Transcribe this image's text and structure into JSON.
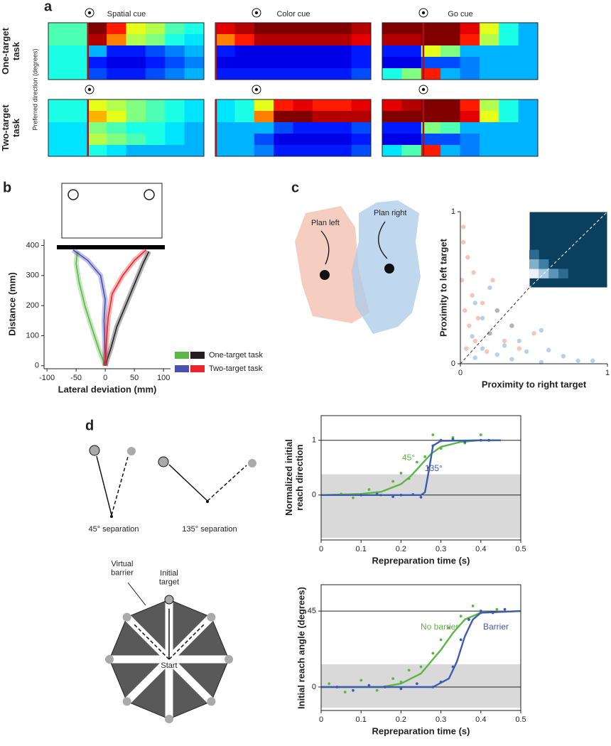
{
  "panels": [
    "a",
    "b",
    "c",
    "d"
  ],
  "diagrams": {
    "plan_left": "Plan left",
    "plan_right": "Plan right",
    "sep45": "45° separation",
    "sep135": "135° separation",
    "virtual_barrier": "Virtual barrier",
    "initial_target": "Initial target",
    "start": "Start"
  },
  "chart_data": [
    {
      "type": "heatmap",
      "ylabel": "Preferred direction (degrees)",
      "rows": [
        "One-target task",
        "Two-target task"
      ],
      "columns": [
        "Spatial cue",
        "Color cue",
        "Go cue"
      ],
      "values": [
        [
          [
            [
              0.45,
              0.45,
              1,
              0.85,
              0.6,
              0.55,
              0.45,
              0.4
            ],
            [
              0.45,
              0.45,
              0.95,
              0.75,
              0.55,
              0.5,
              0.4,
              0.35
            ],
            [
              0.4,
              0.4,
              0.3,
              0.15,
              0.15,
              0.2,
              0.25,
              0.3
            ],
            [
              0.4,
              0.4,
              0.15,
              0.1,
              0.1,
              0.15,
              0.2,
              0.25
            ],
            [
              0.4,
              0.4,
              0.2,
              0.15,
              0.15,
              0.2,
              0.25,
              0.3
            ]
          ],
          [
            [
              0.9,
              0.95,
              1,
              1,
              1,
              1,
              1,
              0.95
            ],
            [
              0.75,
              0.85,
              0.95,
              0.95,
              0.95,
              0.95,
              0.95,
              0.9
            ],
            [
              0.15,
              0.1,
              0.1,
              0.1,
              0.1,
              0.1,
              0.1,
              0.15
            ],
            [
              0.1,
              0.1,
              0.1,
              0.1,
              0.1,
              0.1,
              0.1,
              0.15
            ],
            [
              0.15,
              0.15,
              0.15,
              0.15,
              0.15,
              0.15,
              0.15,
              0.2
            ]
          ],
          [
            [
              1,
              1,
              1,
              1,
              0.9,
              0.6,
              0.4,
              0.3
            ],
            [
              0.95,
              0.95,
              1,
              1,
              0.85,
              0.55,
              0.4,
              0.3
            ],
            [
              0.15,
              0.15,
              0.6,
              0.5,
              0.3,
              0.3,
              0.3,
              0.3
            ],
            [
              0.1,
              0.1,
              0.2,
              0.2,
              0.25,
              0.3,
              0.3,
              0.3
            ],
            [
              0.4,
              0.5,
              0.85,
              0.3,
              0.25,
              0.3,
              0.3,
              0.3
            ]
          ]
        ],
        [
          [
            [
              0.4,
              0.4,
              0.6,
              0.55,
              0.5,
              0.45,
              0.4,
              0.35
            ],
            [
              0.4,
              0.4,
              0.7,
              0.6,
              0.5,
              0.45,
              0.4,
              0.35
            ],
            [
              0.35,
              0.35,
              0.5,
              0.45,
              0.4,
              0.4,
              0.35,
              0.3
            ],
            [
              0.35,
              0.35,
              0.55,
              0.5,
              0.45,
              0.4,
              0.35,
              0.3
            ],
            [
              0.35,
              0.35,
              0.4,
              0.35,
              0.3,
              0.3,
              0.3,
              0.3
            ]
          ],
          [
            [
              0.35,
              0.4,
              0.6,
              0.85,
              0.9,
              0.85,
              0.85,
              0.9
            ],
            [
              0.35,
              0.4,
              0.75,
              1,
              1,
              0.95,
              0.95,
              0.95
            ],
            [
              0.3,
              0.3,
              0.3,
              0.2,
              0.15,
              0.15,
              0.15,
              0.2
            ],
            [
              0.3,
              0.3,
              0.2,
              0.1,
              0.1,
              0.1,
              0.1,
              0.15
            ],
            [
              0.3,
              0.3,
              0.25,
              0.15,
              0.15,
              0.15,
              0.15,
              0.2
            ]
          ],
          [
            [
              0.9,
              0.95,
              1,
              1,
              0.85,
              0.55,
              0.4,
              0.3
            ],
            [
              1,
              1,
              1,
              1,
              0.9,
              0.6,
              0.4,
              0.3
            ],
            [
              0.15,
              0.15,
              0.5,
              0.45,
              0.3,
              0.3,
              0.3,
              0.3
            ],
            [
              0.1,
              0.1,
              0.2,
              0.2,
              0.25,
              0.3,
              0.3,
              0.3
            ],
            [
              0.35,
              0.45,
              0.85,
              0.3,
              0.25,
              0.3,
              0.3,
              0.3
            ]
          ]
        ]
      ]
    },
    {
      "type": "line",
      "xlabel": "Lateral deviation (mm)",
      "ylabel": "Distance (mm)",
      "xlim": [
        -105,
        112
      ],
      "ylim": [
        -10,
        420
      ],
      "xticks": [
        -100,
        -50,
        0,
        50,
        100
      ],
      "yticks": [
        0,
        100,
        200,
        300,
        400
      ],
      "grid": false,
      "series": [
        {
          "color": "#5cb646",
          "x": [
            0,
            -10,
            -22,
            -35,
            -45,
            -50,
            -48
          ],
          "values": [
            0,
            50,
            120,
            200,
            280,
            340,
            380
          ]
        },
        {
          "color": "#231f20",
          "x": [
            0,
            10,
            20,
            35,
            52,
            65,
            75
          ],
          "values": [
            0,
            60,
            130,
            200,
            280,
            340,
            380
          ]
        },
        {
          "color": "#4b4fb0",
          "x": [
            0,
            -1,
            -2,
            0,
            -8,
            -30,
            -55
          ],
          "values": [
            0,
            80,
            150,
            220,
            300,
            350,
            385
          ]
        },
        {
          "color": "#e8262b",
          "x": [
            0,
            2,
            5,
            12,
            30,
            50,
            70
          ],
          "values": [
            0,
            80,
            160,
            240,
            300,
            350,
            385
          ]
        }
      ],
      "legend": [
        {
          "label": "One-target task",
          "colors": [
            "#5cb646",
            "#231f20"
          ]
        },
        {
          "label": "Two-target task",
          "colors": [
            "#4b4fb0",
            "#e8262b"
          ]
        }
      ]
    },
    {
      "type": "scatter",
      "xlabel": "Proximity to right target",
      "ylabel": "Proximity to left target",
      "xlim": [
        0,
        1
      ],
      "ylim": [
        0,
        1
      ],
      "xticks": [
        0,
        1
      ],
      "yticks": [
        0,
        1
      ],
      "grid": false,
      "series": [
        {
          "color": "#e8815f",
          "x": [
            0.02,
            0.05,
            0.01,
            0.08,
            0.03,
            0.12,
            0.06,
            0.15,
            0.2,
            0.1,
            0.25,
            0.3,
            0.04,
            0.18,
            0.35,
            0.4,
            0.22,
            0.5,
            0.02,
            0.09
          ],
          "values": [
            0.9,
            0.7,
            0.55,
            0.45,
            0.35,
            0.3,
            0.25,
            0.4,
            0.2,
            0.15,
            0.35,
            0.15,
            0.1,
            0.08,
            0.25,
            0.1,
            0.55,
            0.2,
            0.8,
            0.6
          ]
        },
        {
          "color": "#5b9bd5",
          "x": [
            0.9,
            0.7,
            0.55,
            0.45,
            0.35,
            0.3,
            0.25,
            0.4,
            0.2,
            0.15,
            0.35,
            0.15,
            0.1,
            0.08,
            0.25,
            0.1,
            0.55,
            0.2,
            0.8,
            0.6
          ],
          "values": [
            0.02,
            0.05,
            0.01,
            0.08,
            0.03,
            0.12,
            0.06,
            0.15,
            0.2,
            0.1,
            0.25,
            0.3,
            0.04,
            0.18,
            0.35,
            0.4,
            0.22,
            0.5,
            0.02,
            0.09
          ]
        }
      ]
    },
    {
      "type": "sigmoid",
      "xlabel": "Repreparation time (s)",
      "ylabel": "Normalized initial reach direction",
      "xlim": [
        0,
        0.5
      ],
      "ylim": [
        -0.82,
        1.45
      ],
      "xticks": [
        0,
        0.1,
        0.2,
        0.3,
        0.4,
        0.5
      ],
      "yticks": [
        0,
        1
      ],
      "grid": true,
      "band": [
        -0.78,
        0.38
      ],
      "series": [
        {
          "name": "45°",
          "color": "#5cb646",
          "x": [
            0,
            0.1,
            0.15,
            0.2,
            0.225,
            0.25,
            0.275,
            0.3,
            0.35,
            0.4,
            0.45
          ],
          "values": [
            0,
            0.02,
            0.06,
            0.2,
            0.35,
            0.55,
            0.75,
            0.88,
            0.97,
            1,
            1
          ],
          "points_x": [
            0.05,
            0.08,
            0.12,
            0.15,
            0.18,
            0.2,
            0.22,
            0.24,
            0.26,
            0.28,
            0.3,
            0.33,
            0.36,
            0.4,
            0.42
          ],
          "points_y": [
            0.02,
            -0.05,
            0.1,
            0,
            0.25,
            0.4,
            0.3,
            0.6,
            0.7,
            1.1,
            0.85,
            1.05,
            0.95,
            1.1,
            1
          ]
        },
        {
          "name": "135°",
          "color": "#3f5bb0",
          "x": [
            0,
            0.25,
            0.26,
            0.27,
            0.28,
            0.3,
            0.4,
            0.45
          ],
          "values": [
            0,
            0,
            0.05,
            0.45,
            0.9,
            0.99,
            1,
            1
          ],
          "points_x": [
            0.1,
            0.14,
            0.18,
            0.2,
            0.23,
            0.25,
            0.27,
            0.28,
            0.3,
            0.33,
            0.36,
            0.4,
            0.42
          ],
          "points_y": [
            0,
            0.02,
            -0.03,
            0,
            0.01,
            -0.04,
            0.5,
            0.9,
            1,
            1.02,
            0.97,
            1,
            1
          ]
        }
      ]
    },
    {
      "type": "sigmoid",
      "xlabel": "Repreparation time (s)",
      "ylabel": "Initial reach angle (degrees)",
      "xlim": [
        0,
        0.5
      ],
      "ylim": [
        -13.9,
        60.6
      ],
      "xticks": [
        0,
        0.1,
        0.2,
        0.3,
        0.4,
        0.5
      ],
      "yticks": [
        0,
        45
      ],
      "grid": true,
      "band": [
        -12.2,
        13.5
      ],
      "series": [
        {
          "name": "No barrier",
          "color": "#5cb646",
          "x": [
            0,
            0.15,
            0.2,
            0.25,
            0.3,
            0.33,
            0.36,
            0.4,
            0.5
          ],
          "values": [
            0,
            0,
            2,
            8,
            22,
            32,
            40,
            44,
            45
          ],
          "points_x": [
            0.02,
            0.06,
            0.1,
            0.14,
            0.18,
            0.2,
            0.22,
            0.25,
            0.28,
            0.3,
            0.32,
            0.35,
            0.38,
            0.4,
            0.44
          ],
          "points_y": [
            2,
            -3,
            4,
            -2,
            5,
            3,
            10,
            12,
            20,
            28,
            35,
            42,
            48,
            44,
            46
          ]
        },
        {
          "name": "Barrier",
          "color": "#3f5bb0",
          "x": [
            0,
            0.28,
            0.32,
            0.34,
            0.36,
            0.38,
            0.4,
            0.5
          ],
          "values": [
            0,
            0,
            5,
            15,
            30,
            40,
            44,
            45
          ],
          "points_x": [
            0.04,
            0.08,
            0.12,
            0.16,
            0.2,
            0.24,
            0.28,
            0.3,
            0.33,
            0.35,
            0.37,
            0.4,
            0.43,
            0.46
          ],
          "points_y": [
            0,
            -2,
            1,
            0,
            -1,
            2,
            0,
            3,
            12,
            28,
            40,
            45,
            44,
            46
          ]
        }
      ]
    }
  ]
}
